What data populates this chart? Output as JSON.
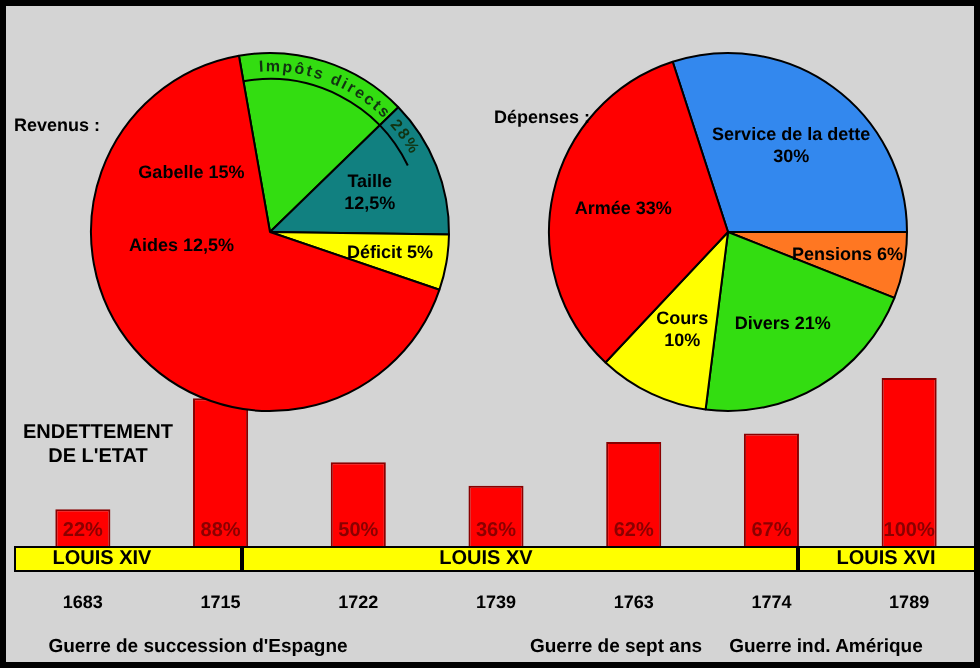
{
  "chart_data": [
    {
      "type": "pie",
      "title": "Revenus :",
      "categories": [
        null,
        "Taille",
        "Déficit",
        null
      ],
      "values": [
        15.5,
        12.5,
        5,
        67
      ],
      "value_labels": [
        null,
        "12,5%",
        "5%",
        null
      ],
      "colors": [
        "#33dd11",
        "#118080",
        "#ffff00",
        "#ff0000"
      ],
      "annotations": [
        "Gabelle 15%",
        "Aides 12,5%",
        "Impôts directs 28%"
      ],
      "legend": false
    },
    {
      "type": "pie",
      "title": "Dépenses :",
      "categories": [
        "Service de la dette",
        "Pensions",
        "Divers",
        "Cours",
        "Armée"
      ],
      "values": [
        30,
        6,
        21,
        10,
        33
      ],
      "value_labels": [
        "30%",
        "6%",
        "21%",
        "10%",
        "33%"
      ],
      "colors": [
        "#3388ee",
        "#ff7722",
        "#33dd11",
        "#ffff00",
        "#ff0000"
      ],
      "legend": false
    },
    {
      "type": "bar",
      "title": "ENDETTEMENT DE L'ETAT",
      "categories": [
        "1683",
        "1715",
        "1722",
        "1739",
        "1763",
        "1774",
        "1789"
      ],
      "values": [
        22,
        88,
        50,
        36,
        62,
        67,
        100
      ],
      "value_labels": [
        "22%",
        "88%",
        "50%",
        "36%",
        "62%",
        "67%",
        "100%"
      ],
      "color": "#ff0000",
      "legend": false,
      "annotations": [
        "LOUIS XIV",
        "LOUIS XV",
        "LOUIS XVI",
        "Guerre de succession d'Espagne",
        "Guerre de sept ans",
        "Guerre ind. Amérique"
      ]
    }
  ]
}
